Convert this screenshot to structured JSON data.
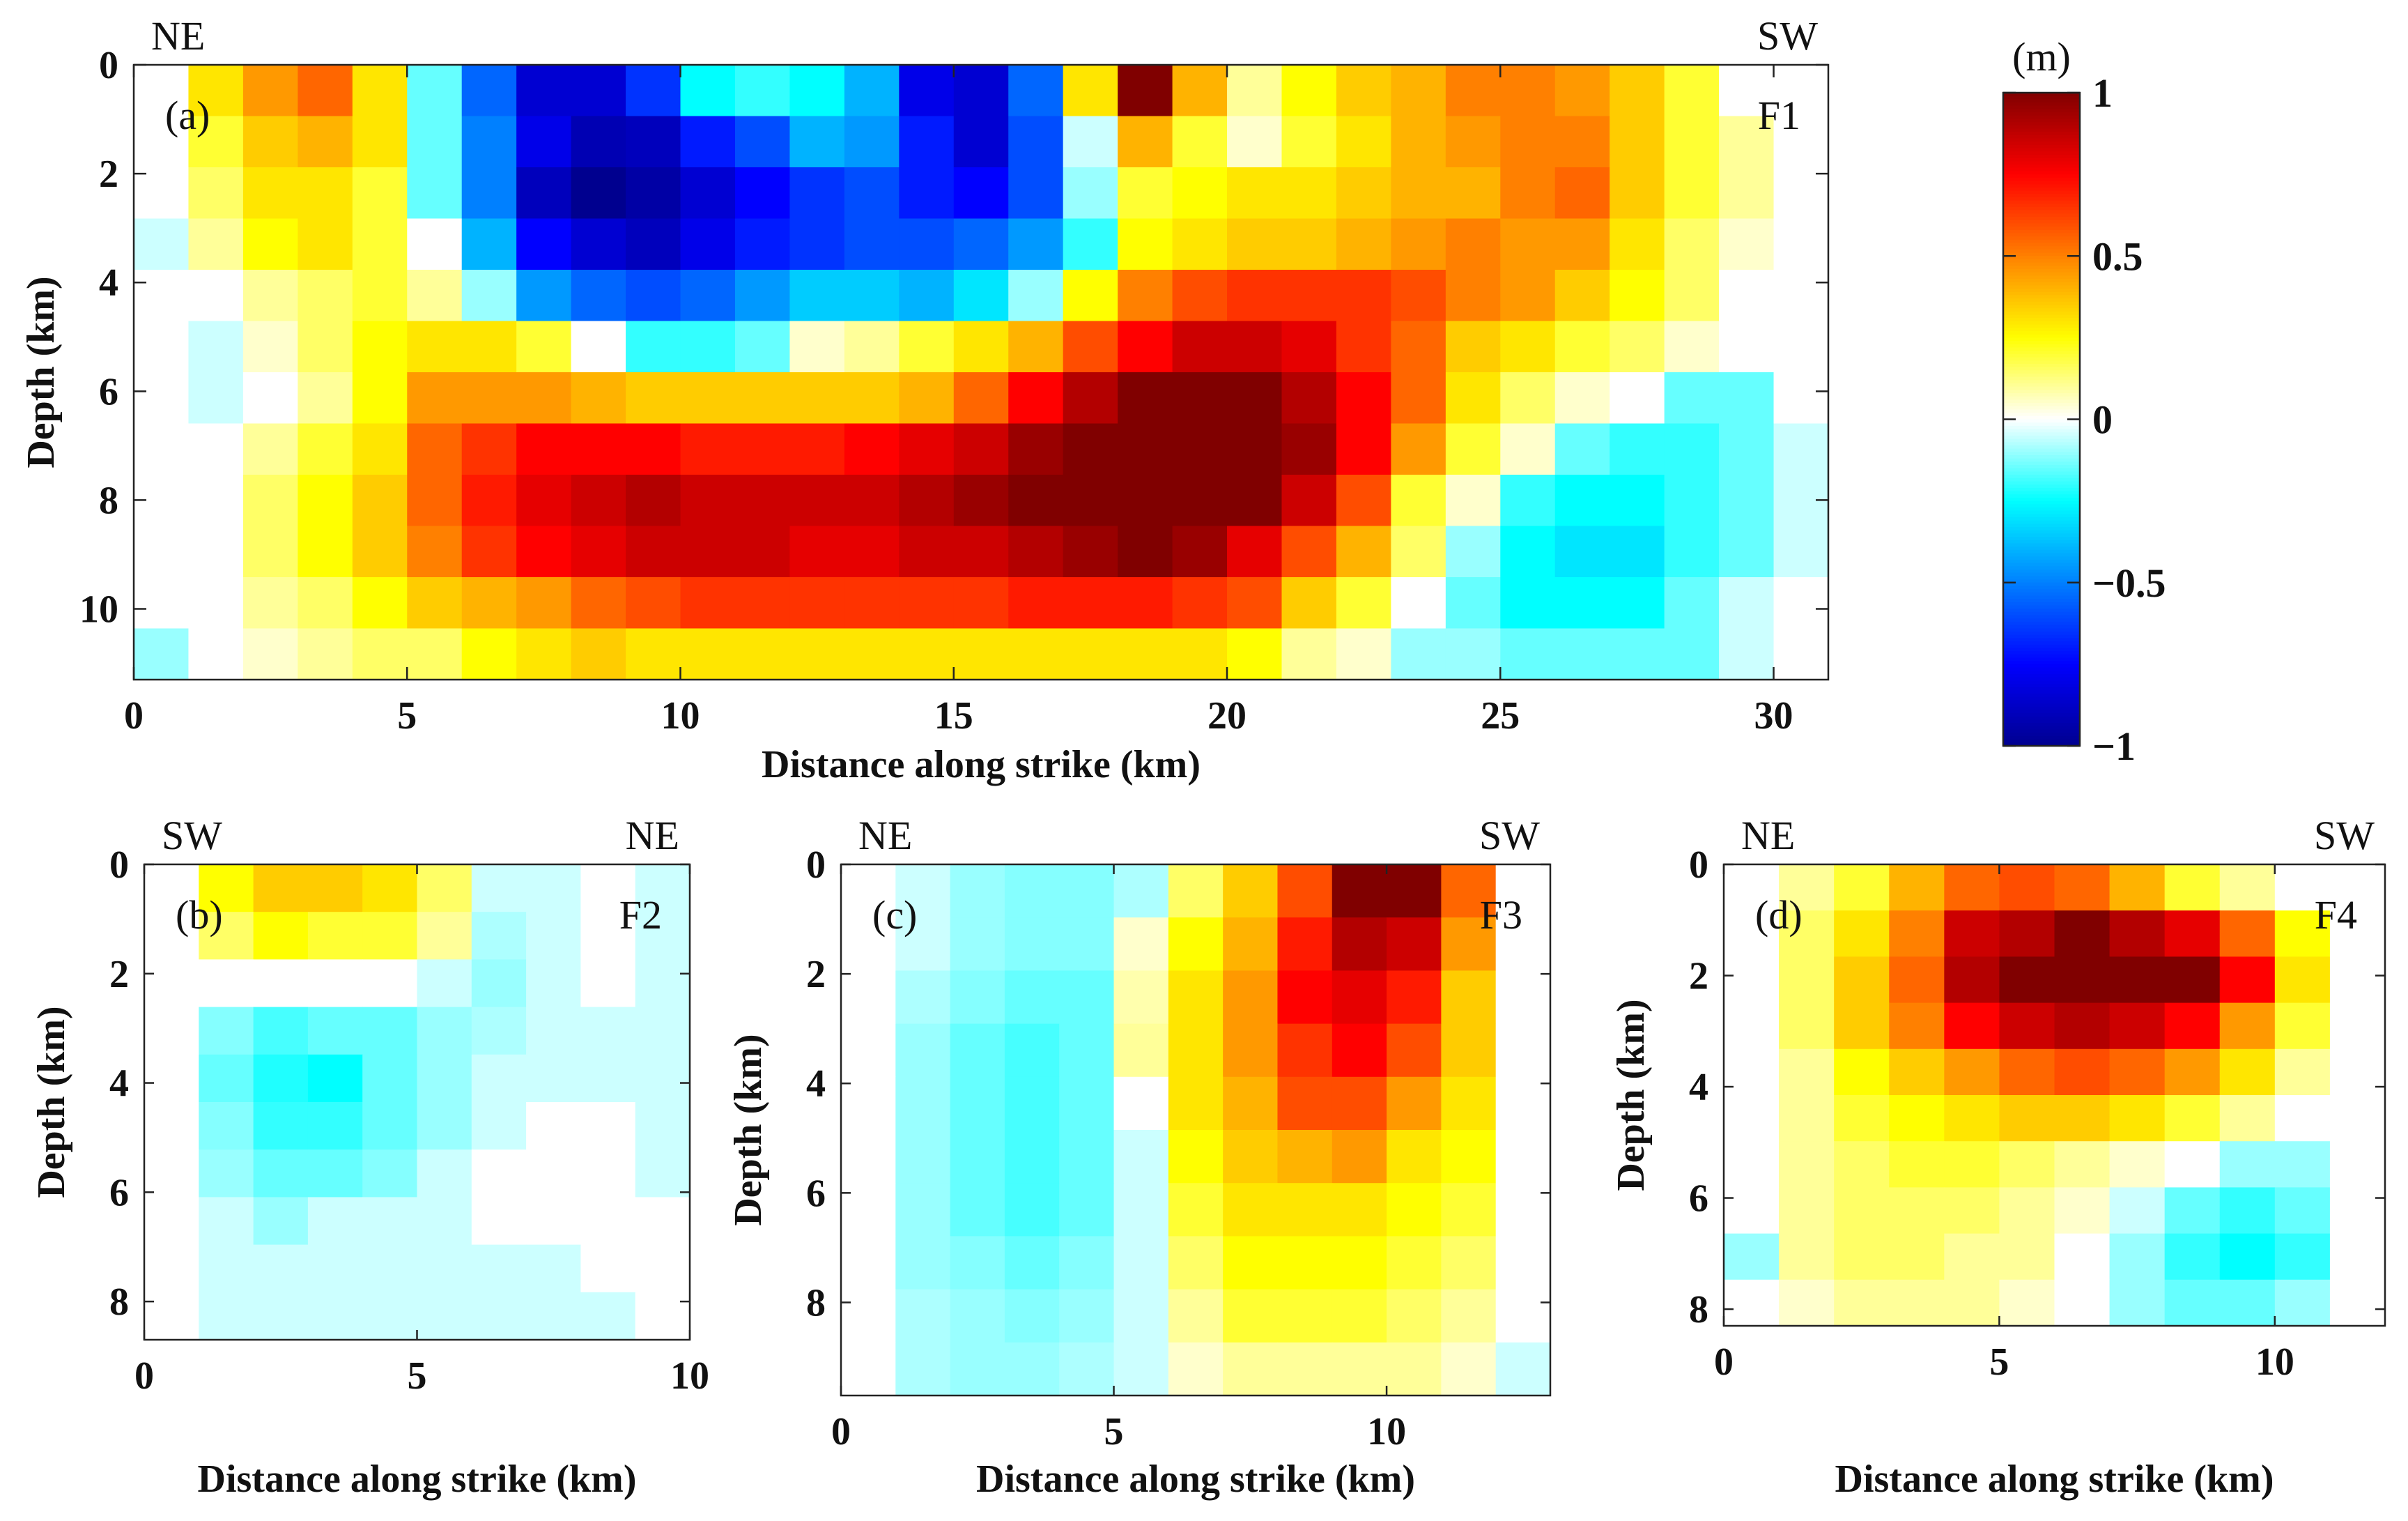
{
  "colormap": {
    "name": "jet-white-center",
    "stops": [
      "#00008F",
      "#0000FF",
      "#0080FF",
      "#00FFFF",
      "#FFFFFF",
      "#FFFF00",
      "#FF8000",
      "#FF0000",
      "#800000"
    ],
    "unit": "(m)",
    "ticks": [
      {
        "v": 1,
        "label": "1"
      },
      {
        "v": 0.5,
        "label": "0.5"
      },
      {
        "v": 0,
        "label": "0"
      },
      {
        "v": -0.5,
        "label": "−0.5"
      },
      {
        "v": -1,
        "label": "−1"
      }
    ],
    "vmin": -1,
    "vmax": 1
  },
  "chart_data": [
    {
      "type": "heatmap",
      "panel": "(a)",
      "fault": "F1",
      "left_end": "NE",
      "right_end": "SW",
      "xlabel": "Distance along strike (km)",
      "ylabel": "Depth (km)",
      "xlim": [
        0,
        31
      ],
      "ylim": [
        11.3,
        0
      ],
      "xticks": [
        0,
        5,
        10,
        15,
        20,
        25,
        30
      ],
      "yticks": [
        0,
        2,
        4,
        6,
        8,
        10
      ],
      "values": [
        [
          0,
          0.3,
          0.45,
          0.55,
          0.3,
          -0.15,
          -0.55,
          -0.85,
          -0.85,
          -0.65,
          -0.25,
          -0.2,
          -0.25,
          -0.4,
          -0.8,
          -0.85,
          -0.55,
          0.3,
          1.0,
          0.4,
          0.1,
          0.25,
          0.35,
          0.4,
          0.5,
          0.5,
          0.45,
          0.35,
          0.2,
          0,
          0
        ],
        [
          0,
          0.2,
          0.35,
          0.4,
          0.3,
          -0.15,
          -0.5,
          -0.8,
          -0.92,
          -0.9,
          -0.7,
          -0.6,
          -0.4,
          -0.45,
          -0.7,
          -0.85,
          -0.6,
          -0.05,
          0.4,
          0.2,
          0.05,
          0.2,
          0.3,
          0.4,
          0.45,
          0.5,
          0.5,
          0.35,
          0.2,
          0.1,
          0
        ],
        [
          0,
          0.15,
          0.3,
          0.3,
          0.2,
          -0.15,
          -0.5,
          -0.9,
          -1.0,
          -0.95,
          -0.85,
          -0.75,
          -0.65,
          -0.6,
          -0.7,
          -0.75,
          -0.6,
          -0.1,
          0.2,
          0.25,
          0.3,
          0.3,
          0.35,
          0.4,
          0.4,
          0.5,
          0.55,
          0.35,
          0.2,
          0.1,
          0
        ],
        [
          -0.05,
          0.1,
          0.25,
          0.3,
          0.2,
          0,
          -0.4,
          -0.75,
          -0.85,
          -0.9,
          -0.8,
          -0.7,
          -0.65,
          -0.6,
          -0.6,
          -0.55,
          -0.45,
          -0.2,
          0.25,
          0.3,
          0.35,
          0.35,
          0.4,
          0.45,
          0.5,
          0.45,
          0.45,
          0.3,
          0.15,
          0.05,
          0
        ],
        [
          0,
          0,
          0.1,
          0.15,
          0.2,
          0.1,
          -0.1,
          -0.45,
          -0.55,
          -0.6,
          -0.55,
          -0.45,
          -0.35,
          -0.35,
          -0.4,
          -0.3,
          -0.1,
          0.25,
          0.5,
          0.6,
          0.65,
          0.65,
          0.65,
          0.6,
          0.5,
          0.45,
          0.35,
          0.25,
          0.15,
          0,
          0
        ],
        [
          0,
          -0.05,
          0.05,
          0.15,
          0.25,
          0.3,
          0.3,
          0.2,
          0,
          -0.2,
          -0.2,
          -0.15,
          0.05,
          0.1,
          0.2,
          0.3,
          0.4,
          0.6,
          0.75,
          0.85,
          0.85,
          0.8,
          0.65,
          0.55,
          0.35,
          0.3,
          0.2,
          0.15,
          0.05,
          0,
          0
        ],
        [
          0,
          -0.05,
          0,
          0.1,
          0.25,
          0.45,
          0.45,
          0.45,
          0.4,
          0.35,
          0.35,
          0.35,
          0.35,
          0.35,
          0.4,
          0.55,
          0.75,
          0.9,
          1.0,
          1.0,
          1.0,
          0.9,
          0.75,
          0.55,
          0.3,
          0.15,
          0.05,
          0,
          -0.15,
          -0.15,
          0
        ],
        [
          0,
          0,
          0.1,
          0.2,
          0.3,
          0.55,
          0.65,
          0.75,
          0.75,
          0.75,
          0.7,
          0.7,
          0.7,
          0.75,
          0.8,
          0.85,
          0.95,
          1.0,
          1.0,
          1.0,
          1.0,
          0.95,
          0.75,
          0.45,
          0.2,
          0.05,
          -0.15,
          -0.2,
          -0.2,
          -0.15,
          -0.05
        ],
        [
          0,
          0,
          0.15,
          0.25,
          0.35,
          0.55,
          0.7,
          0.8,
          0.85,
          0.9,
          0.85,
          0.85,
          0.85,
          0.85,
          0.9,
          0.95,
          1.0,
          1.0,
          1.0,
          1.0,
          1.0,
          0.85,
          0.6,
          0.2,
          0.05,
          -0.2,
          -0.25,
          -0.25,
          -0.2,
          -0.15,
          -0.05
        ],
        [
          0,
          0,
          0.15,
          0.25,
          0.35,
          0.5,
          0.65,
          0.75,
          0.8,
          0.85,
          0.85,
          0.85,
          0.8,
          0.8,
          0.85,
          0.85,
          0.9,
          0.95,
          1.0,
          0.95,
          0.8,
          0.6,
          0.4,
          0.15,
          -0.1,
          -0.25,
          -0.3,
          -0.3,
          -0.2,
          -0.15,
          -0.05
        ],
        [
          0,
          0,
          0.1,
          0.15,
          0.25,
          0.35,
          0.4,
          0.45,
          0.55,
          0.6,
          0.65,
          0.65,
          0.65,
          0.65,
          0.65,
          0.65,
          0.7,
          0.7,
          0.7,
          0.65,
          0.6,
          0.35,
          0.2,
          0,
          -0.15,
          -0.25,
          -0.25,
          -0.25,
          -0.15,
          -0.05,
          0
        ],
        [
          -0.1,
          0,
          0.05,
          0.1,
          0.15,
          0.15,
          0.25,
          0.3,
          0.35,
          0.3,
          0.3,
          0.3,
          0.3,
          0.3,
          0.3,
          0.3,
          0.3,
          0.3,
          0.3,
          0.3,
          0.25,
          0.1,
          0.05,
          -0.1,
          -0.1,
          -0.15,
          -0.15,
          -0.15,
          -0.15,
          -0.05,
          0
        ]
      ]
    },
    {
      "type": "heatmap",
      "panel": "(b)",
      "fault": "F2",
      "left_end": "SW",
      "right_end": "NE",
      "xlabel": "Distance along strike (km)",
      "ylabel": "Depth (km)",
      "xlim": [
        0,
        10
      ],
      "ylim": [
        8.7,
        0
      ],
      "xticks": [
        0,
        5,
        10
      ],
      "yticks": [
        0,
        2,
        4,
        6,
        8
      ],
      "values": [
        [
          0,
          0.25,
          0.35,
          0.35,
          0.3,
          0.15,
          -0.05,
          -0.05,
          0,
          -0.05
        ],
        [
          0,
          0.15,
          0.25,
          0.2,
          0.2,
          0.1,
          -0.08,
          -0.05,
          0,
          -0.05
        ],
        [
          0,
          0,
          0,
          0,
          0,
          -0.05,
          -0.1,
          -0.05,
          0,
          -0.05
        ],
        [
          0,
          -0.12,
          -0.18,
          -0.15,
          -0.15,
          -0.1,
          -0.08,
          -0.05,
          -0.05,
          -0.05
        ],
        [
          0,
          -0.15,
          -0.22,
          -0.25,
          -0.15,
          -0.1,
          -0.05,
          -0.05,
          -0.05,
          -0.05
        ],
        [
          0,
          -0.12,
          -0.2,
          -0.2,
          -0.15,
          -0.1,
          -0.05,
          0,
          0,
          -0.05
        ],
        [
          0,
          -0.1,
          -0.15,
          -0.15,
          -0.12,
          -0.05,
          0,
          0,
          0,
          -0.05
        ],
        [
          0,
          -0.05,
          -0.1,
          -0.05,
          -0.05,
          -0.05,
          0,
          0,
          0,
          0
        ],
        [
          0,
          -0.05,
          -0.05,
          -0.05,
          -0.05,
          -0.05,
          -0.05,
          -0.05,
          0,
          0
        ],
        [
          0,
          -0.05,
          -0.05,
          -0.05,
          -0.05,
          -0.05,
          -0.05,
          -0.05,
          -0.05,
          0
        ]
      ]
    },
    {
      "type": "heatmap",
      "panel": "(c)",
      "fault": "F3",
      "left_end": "NE",
      "right_end": "SW",
      "xlabel": "Distance along strike (km)",
      "ylabel": "Depth (km)",
      "xlim": [
        0,
        13
      ],
      "ylim": [
        9.7,
        0
      ],
      "xticks": [
        0,
        5,
        10
      ],
      "yticks": [
        0,
        2,
        4,
        6,
        8
      ],
      "values": [
        [
          0,
          -0.05,
          -0.1,
          -0.12,
          -0.12,
          -0.08,
          0.15,
          0.35,
          0.6,
          1.0,
          1.0,
          0.55,
          0
        ],
        [
          0,
          -0.05,
          -0.1,
          -0.12,
          -0.12,
          0.05,
          0.25,
          0.4,
          0.7,
          0.9,
          0.85,
          0.45,
          0
        ],
        [
          0,
          -0.08,
          -0.12,
          -0.15,
          -0.15,
          0.08,
          0.3,
          0.45,
          0.75,
          0.8,
          0.7,
          0.35,
          0
        ],
        [
          0,
          -0.1,
          -0.15,
          -0.18,
          -0.15,
          0.1,
          0.3,
          0.45,
          0.65,
          0.75,
          0.6,
          0.35,
          0
        ],
        [
          0,
          -0.1,
          -0.15,
          -0.18,
          -0.15,
          0,
          0.3,
          0.4,
          0.6,
          0.6,
          0.45,
          0.3,
          0
        ],
        [
          0,
          -0.1,
          -0.15,
          -0.18,
          -0.15,
          -0.05,
          0.25,
          0.35,
          0.4,
          0.45,
          0.3,
          0.25,
          0
        ],
        [
          0,
          -0.1,
          -0.15,
          -0.18,
          -0.15,
          -0.05,
          0.2,
          0.3,
          0.3,
          0.3,
          0.25,
          0.2,
          0
        ],
        [
          0,
          -0.1,
          -0.12,
          -0.15,
          -0.12,
          -0.05,
          0.15,
          0.25,
          0.25,
          0.25,
          0.2,
          0.15,
          0
        ],
        [
          0,
          -0.08,
          -0.1,
          -0.12,
          -0.1,
          -0.05,
          0.1,
          0.2,
          0.2,
          0.2,
          0.15,
          0.1,
          0
        ],
        [
          0,
          -0.08,
          -0.1,
          -0.1,
          -0.08,
          -0.05,
          0.05,
          0.1,
          0.1,
          0.1,
          0.1,
          0.05,
          -0.05
        ]
      ]
    },
    {
      "type": "heatmap",
      "panel": "(d)",
      "fault": "F4",
      "left_end": "NE",
      "right_end": "SW",
      "xlabel": "Distance along strike (km)",
      "ylabel": "Depth (km)",
      "xlim": [
        0,
        12
      ],
      "ylim": [
        8.3,
        0
      ],
      "xticks": [
        0,
        5,
        10
      ],
      "yticks": [
        0,
        2,
        4,
        6,
        8
      ],
      "values": [
        [
          0,
          0.1,
          0.2,
          0.4,
          0.55,
          0.6,
          0.55,
          0.4,
          0.2,
          0.1,
          0,
          0
        ],
        [
          0,
          0.15,
          0.3,
          0.5,
          0.85,
          0.9,
          1.0,
          0.9,
          0.8,
          0.55,
          0.25,
          0
        ],
        [
          0,
          0.15,
          0.35,
          0.55,
          0.9,
          1.0,
          1.0,
          1.0,
          1.0,
          0.75,
          0.3,
          0
        ],
        [
          0,
          0.15,
          0.35,
          0.5,
          0.75,
          0.85,
          0.9,
          0.85,
          0.75,
          0.45,
          0.2,
          0
        ],
        [
          0,
          0.1,
          0.25,
          0.35,
          0.45,
          0.55,
          0.6,
          0.55,
          0.45,
          0.3,
          0.1,
          0
        ],
        [
          0,
          0.1,
          0.2,
          0.25,
          0.3,
          0.35,
          0.35,
          0.3,
          0.2,
          0.1,
          0,
          0
        ],
        [
          0,
          0.1,
          0.15,
          0.2,
          0.2,
          0.15,
          0.1,
          0.05,
          0,
          -0.1,
          -0.1,
          0
        ],
        [
          0,
          0.1,
          0.15,
          0.15,
          0.15,
          0.1,
          0.05,
          -0.05,
          -0.15,
          -0.2,
          -0.15,
          0
        ],
        [
          -0.1,
          0.1,
          0.15,
          0.15,
          0.1,
          0.1,
          0,
          -0.1,
          -0.2,
          -0.25,
          -0.2,
          0
        ],
        [
          0,
          0.05,
          0.1,
          0.1,
          0.1,
          0.05,
          0,
          -0.1,
          -0.15,
          -0.15,
          -0.1,
          0
        ]
      ]
    }
  ]
}
